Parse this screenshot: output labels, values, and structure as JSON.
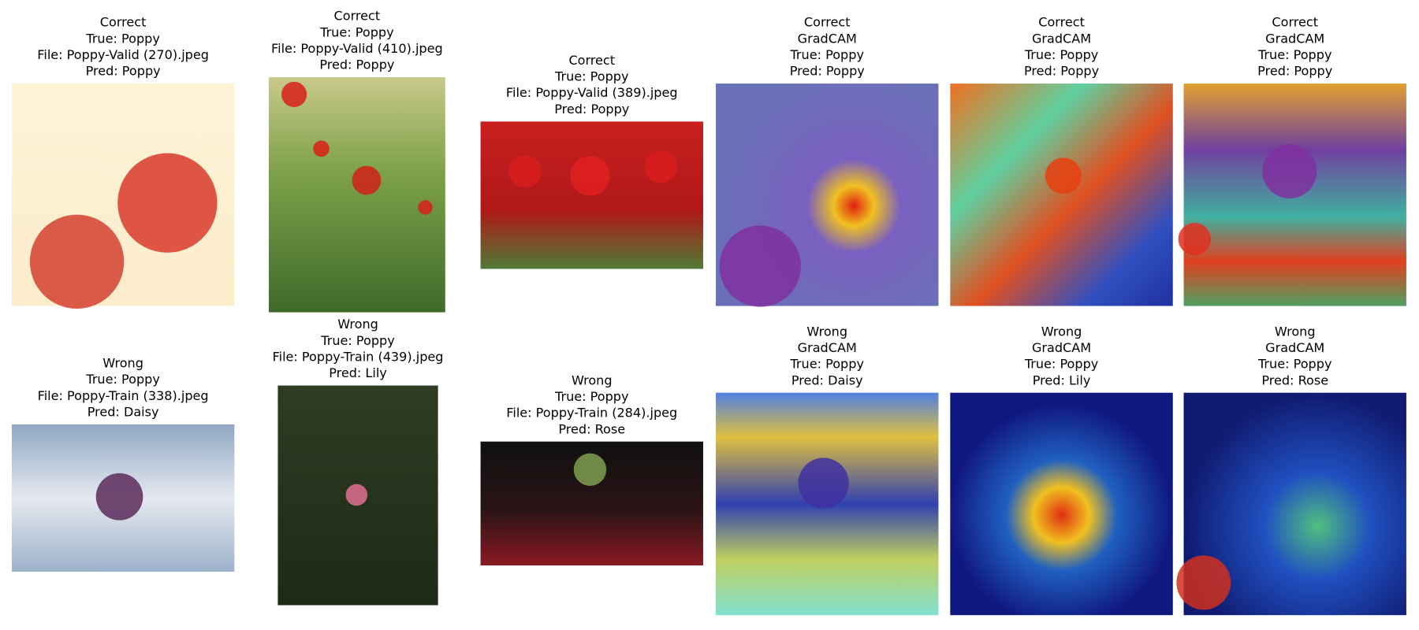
{
  "panels": [
    {
      "lines": [
        "Correct",
        "True: Poppy",
        "File: Poppy-Valid (270).jpeg",
        "Pred: Poppy"
      ]
    },
    {
      "lines": [
        "Correct",
        "True: Poppy",
        "File: Poppy-Valid (410).jpeg",
        "Pred: Poppy"
      ]
    },
    {
      "lines": [
        "Correct",
        "True: Poppy",
        "File: Poppy-Valid (389).jpeg",
        "Pred: Poppy"
      ]
    },
    {
      "lines": [
        "Correct",
        "GradCAM",
        "True: Poppy",
        "Pred: Poppy"
      ]
    },
    {
      "lines": [
        "Correct",
        "GradCAM",
        "True: Poppy",
        "Pred: Poppy"
      ]
    },
    {
      "lines": [
        "Correct",
        "GradCAM",
        "True: Poppy",
        "Pred: Poppy"
      ]
    },
    {
      "lines": [
        "Wrong",
        "True: Poppy",
        "File: Poppy-Train (338).jpeg",
        "Pred: Daisy"
      ]
    },
    {
      "lines": [
        "Wrong",
        "True: Poppy",
        "File: Poppy-Train (439).jpeg",
        "Pred: Lily"
      ]
    },
    {
      "lines": [
        "Wrong",
        "True: Poppy",
        "File: Poppy-Train (284).jpeg",
        "Pred: Rose"
      ]
    },
    {
      "lines": [
        "Wrong",
        "GradCAM",
        "True: Poppy",
        "Pred: Daisy"
      ]
    },
    {
      "lines": [
        "Wrong",
        "GradCAM",
        "True: Poppy",
        "Pred: Lily"
      ]
    },
    {
      "lines": [
        "Wrong",
        "GradCAM",
        "True: Poppy",
        "Pred: Rose"
      ]
    }
  ]
}
